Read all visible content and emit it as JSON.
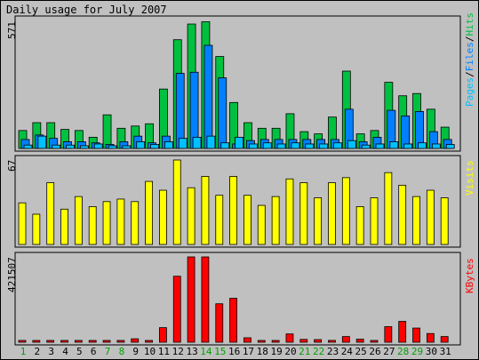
{
  "title": "Daily usage for July 2007",
  "legend": {
    "hits_panel": {
      "pages": "Pages",
      "files": "Files",
      "hits": "Hits",
      "sep": "/"
    },
    "visits_panel": "Visits",
    "kbytes_panel": "KBytes"
  },
  "colors": {
    "background": "#c0c0c0",
    "hits": "#00c040",
    "files": "#0080ff",
    "pages": "#00c0ff",
    "visits": "#ffff00",
    "kbytes": "#ff0000",
    "weekday_label": "#000000",
    "weekend_label": "#00a000"
  },
  "chart_data": [
    {
      "type": "bar",
      "title": "Daily usage for July 2007",
      "ymax_label": "571",
      "ylim": [
        0,
        571
      ],
      "categories": [
        "1",
        "2",
        "3",
        "4",
        "5",
        "6",
        "7",
        "8",
        "9",
        "10",
        "11",
        "12",
        "13",
        "14",
        "15",
        "16",
        "17",
        "18",
        "19",
        "20",
        "21",
        "22",
        "23",
        "24",
        "25",
        "26",
        "27",
        "28",
        "29",
        "30",
        "31"
      ],
      "weekend_days": [
        "1",
        "7",
        "8",
        "14",
        "15",
        "21",
        "22",
        "28",
        "29"
      ],
      "series": [
        {
          "name": "Hits",
          "values": [
            80,
            115,
            115,
            85,
            80,
            50,
            150,
            90,
            100,
            110,
            265,
            485,
            555,
            565,
            410,
            205,
            115,
            90,
            90,
            155,
            75,
            65,
            140,
            345,
            65,
            80,
            295,
            235,
            245,
            175,
            95
          ]
        },
        {
          "name": "Files",
          "values": [
            40,
            60,
            45,
            30,
            30,
            25,
            18,
            30,
            55,
            25,
            55,
            335,
            340,
            460,
            315,
            20,
            35,
            40,
            40,
            40,
            40,
            40,
            40,
            175,
            30,
            50,
            170,
            145,
            165,
            75,
            40
          ]
        },
        {
          "name": "Pages",
          "values": [
            15,
            55,
            15,
            15,
            12,
            20,
            12,
            12,
            30,
            18,
            30,
            45,
            50,
            55,
            25,
            50,
            20,
            25,
            20,
            25,
            20,
            20,
            25,
            35,
            15,
            20,
            30,
            20,
            25,
            20,
            18
          ]
        }
      ]
    },
    {
      "type": "bar",
      "ymax_label": "67",
      "ylim": [
        0,
        67
      ],
      "categories": [
        "1",
        "2",
        "3",
        "4",
        "5",
        "6",
        "7",
        "8",
        "9",
        "10",
        "11",
        "12",
        "13",
        "14",
        "15",
        "16",
        "17",
        "18",
        "19",
        "20",
        "21",
        "22",
        "23",
        "24",
        "25",
        "26",
        "27",
        "28",
        "29",
        "30",
        "31"
      ],
      "series": [
        {
          "name": "Visits",
          "values": [
            33,
            24,
            49,
            28,
            38,
            30,
            34,
            36,
            34,
            50,
            43,
            67,
            45,
            54,
            39,
            54,
            39,
            31,
            38,
            52,
            49,
            37,
            49,
            53,
            30,
            37,
            57,
            47,
            38,
            43,
            37
          ]
        }
      ]
    },
    {
      "type": "bar",
      "ymax_label": "421507",
      "ylim": [
        0,
        421507
      ],
      "categories": [
        "1",
        "2",
        "3",
        "4",
        "5",
        "6",
        "7",
        "8",
        "9",
        "10",
        "11",
        "12",
        "13",
        "14",
        "15",
        "16",
        "17",
        "18",
        "19",
        "20",
        "21",
        "22",
        "23",
        "24",
        "25",
        "26",
        "27",
        "28",
        "29",
        "30",
        "31"
      ],
      "series": [
        {
          "name": "KBytes",
          "values": [
            5000,
            5000,
            5000,
            5000,
            5000,
            5000,
            5000,
            5000,
            17000,
            5000,
            72000,
            326000,
            421507,
            421507,
            190000,
            217000,
            22000,
            8000,
            8000,
            41000,
            14000,
            13000,
            9000,
            28000,
            15000,
            5000,
            77000,
            103000,
            70000,
            43000,
            28000
          ]
        }
      ]
    }
  ]
}
